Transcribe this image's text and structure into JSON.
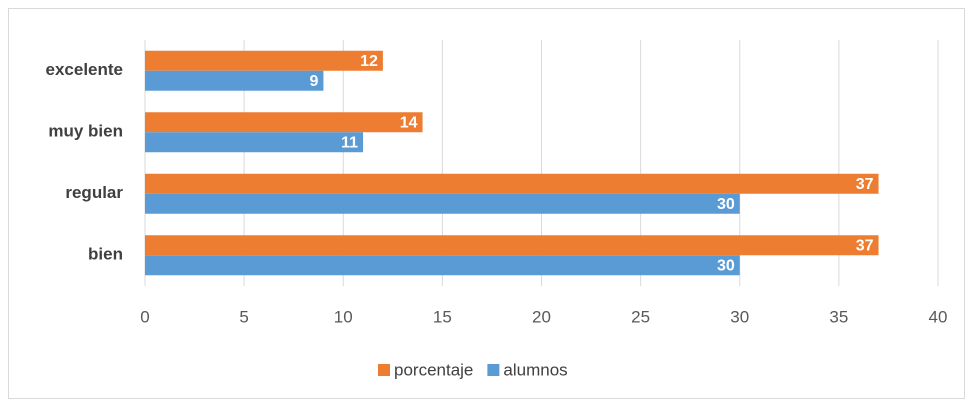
{
  "chart_data": {
    "type": "bar",
    "orientation": "horizontal",
    "categories": [
      "excelente",
      "muy bien",
      "regular",
      "bien"
    ],
    "series": [
      {
        "name": "porcentaje",
        "color": "#ed7d31",
        "values": [
          12,
          14,
          37,
          37
        ]
      },
      {
        "name": "alumnos",
        "color": "#5b9bd5",
        "values": [
          9,
          11,
          30,
          30
        ]
      }
    ],
    "xlim": [
      0,
      40
    ],
    "xticks": [
      0,
      5,
      10,
      15,
      20,
      25,
      30,
      35,
      40
    ],
    "grid": true,
    "legend": "bottom"
  }
}
